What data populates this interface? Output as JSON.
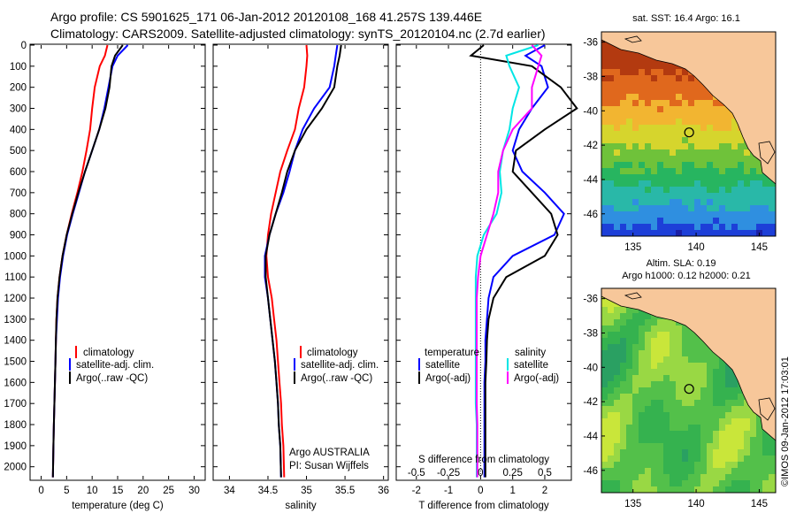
{
  "header": {
    "line1": "Argo profile: CS 5901625_171 06-Jan-2012 20120108_168 41.257S 139.446E",
    "line2": "Climatology: CARS2009. Satellite-adjusted climatology: synTS_20120104.nc (2.7d earlier)"
  },
  "colors": {
    "climatology": "#ff0000",
    "satellite": "#0000ff",
    "argo": "#000000",
    "s_satellite": "#00e5e5",
    "s_argo": "#ff00ff"
  },
  "credit": {
    "line1": "Argo AUSTRALIA",
    "line2": "PI: Susan Wijffels"
  },
  "imos_stamp": "©IMOS 09-Jan-2012 17:03:01",
  "chart_data": [
    {
      "type": "line",
      "id": "temperature",
      "xlabel": "temperature (deg C)",
      "ylabel": "",
      "xlim": [
        -2,
        32
      ],
      "ylim": [
        2060,
        0
      ],
      "xticks": [
        0,
        5,
        10,
        15,
        20,
        25,
        30
      ],
      "yticks": [
        0,
        100,
        200,
        300,
        400,
        500,
        600,
        700,
        800,
        900,
        1000,
        1100,
        1200,
        1300,
        1400,
        1500,
        1600,
        1700,
        1800,
        1900,
        2000
      ],
      "legend": [
        "climatology",
        "satellite-adj. clim.",
        "Argo(..raw -QC)"
      ],
      "series": [
        {
          "name": "climatology",
          "color": "#ff0000",
          "x": [
            13,
            12.5,
            11.5,
            10.5,
            10,
            9.6,
            8.9,
            8.1,
            7.1,
            6,
            5,
            4.2,
            3.6,
            3.2,
            3,
            2.9,
            2.8,
            2.7,
            2.6,
            2.5,
            2.4,
            2.3
          ],
          "y": [
            0,
            50,
            100,
            200,
            300,
            400,
            500,
            600,
            700,
            800,
            900,
            1000,
            1100,
            1200,
            1300,
            1400,
            1500,
            1600,
            1700,
            1800,
            1900,
            2050
          ]
        },
        {
          "name": "satellite-adj. clim.",
          "color": "#0000ff",
          "x": [
            17,
            15,
            14,
            13.2,
            12.4,
            11.4,
            10,
            8.6,
            7.4,
            6.2,
            5.1,
            4.3,
            3.7,
            3.3,
            3.1,
            2.9,
            2.8,
            2.7,
            2.6,
            2.5,
            2.4,
            2.3
          ],
          "y": [
            0,
            50,
            100,
            200,
            300,
            400,
            500,
            600,
            700,
            800,
            900,
            1000,
            1100,
            1200,
            1300,
            1400,
            1500,
            1600,
            1700,
            1800,
            1900,
            2050
          ]
        },
        {
          "name": "Argo(..raw -QC)",
          "color": "#000000",
          "x": [
            16,
            14.5,
            13.8,
            13.4,
            12.6,
            11.4,
            10,
            8.6,
            7.3,
            6.1,
            5,
            4.2,
            3.6,
            3.2,
            3,
            2.9,
            2.8,
            2.7,
            2.6,
            2.5,
            2.4,
            2.3
          ],
          "y": [
            0,
            50,
            100,
            200,
            300,
            400,
            500,
            600,
            700,
            800,
            900,
            1000,
            1100,
            1200,
            1300,
            1400,
            1500,
            1600,
            1700,
            1800,
            1900,
            2050
          ]
        }
      ]
    },
    {
      "type": "line",
      "id": "salinity",
      "xlabel": "salinity",
      "xlim": [
        33.8,
        36.05
      ],
      "ylim": [
        2060,
        0
      ],
      "xticks": [
        34,
        34.5,
        35,
        35.5,
        36
      ],
      "legend": [
        "climatology",
        "satellite-adj. clim.",
        "Argo(..raw -QC)"
      ],
      "series": [
        {
          "name": "climatology",
          "color": "#ff0000",
          "x": [
            35,
            35.01,
            35.0,
            34.97,
            34.9,
            34.85,
            34.75,
            34.66,
            34.6,
            34.54,
            34.5,
            34.48,
            34.5,
            34.55,
            34.58,
            34.61,
            34.63,
            34.65,
            34.67,
            34.68,
            34.7,
            34.71
          ],
          "y": [
            0,
            50,
            100,
            200,
            300,
            400,
            500,
            600,
            700,
            800,
            900,
            1000,
            1100,
            1200,
            1300,
            1400,
            1500,
            1600,
            1700,
            1800,
            1900,
            2050
          ]
        },
        {
          "name": "satellite-adj. clim.",
          "color": "#0000ff",
          "x": [
            35.4,
            35.38,
            35.36,
            35.3,
            35.1,
            34.95,
            34.85,
            34.78,
            34.7,
            34.6,
            34.52,
            34.46,
            34.46,
            34.5,
            34.53,
            34.56,
            34.59,
            34.61,
            34.63,
            34.64,
            34.66,
            34.67
          ],
          "y": [
            0,
            50,
            100,
            200,
            300,
            400,
            500,
            600,
            700,
            800,
            900,
            1000,
            1100,
            1200,
            1300,
            1400,
            1500,
            1600,
            1700,
            1800,
            1900,
            2050
          ]
        },
        {
          "name": "Argo(..raw -QC)",
          "color": "#000000",
          "x": [
            35.45,
            35.43,
            35.4,
            35.36,
            35.2,
            35.0,
            34.85,
            34.75,
            34.68,
            34.6,
            34.52,
            34.47,
            34.47,
            34.5,
            34.53,
            34.56,
            34.59,
            34.61,
            34.63,
            34.64,
            34.66,
            34.67
          ],
          "y": [
            0,
            50,
            100,
            200,
            300,
            400,
            500,
            600,
            700,
            800,
            900,
            1000,
            1100,
            1200,
            1300,
            1400,
            1500,
            1600,
            1700,
            1800,
            1900,
            2050
          ]
        }
      ]
    },
    {
      "type": "line",
      "id": "difference",
      "xlabel": "T difference from climatology",
      "xlabel_top": "S difference from climatology",
      "xlim": [
        -2.6,
        2.8
      ],
      "ylim": [
        2060,
        0
      ],
      "xticks": [
        -2,
        -1,
        0,
        1,
        2
      ],
      "top_xticks": [
        {
          "label": "-0.5",
          "x": -2
        },
        {
          "label": "-0.25",
          "x": -1
        },
        {
          "label": "0",
          "x": 0
        },
        {
          "label": "0.25",
          "x": 1
        },
        {
          "label": "0.5",
          "x": 2
        }
      ],
      "legend_titles": [
        "temperature",
        "salinity"
      ],
      "legend_temperature": [
        "satellite",
        "Argo(-adj)"
      ],
      "legend_salinity": [
        "satellite",
        "Argo(-adj)"
      ],
      "series": [
        {
          "name": "T satellite",
          "color": "#0000ff",
          "x": [
            2,
            1.4,
            1.9,
            2.1,
            1.6,
            1.2,
            1.0,
            1.3,
            2.0,
            2.6,
            2.3,
            1.0,
            0.4,
            0.25,
            0.2,
            0.15,
            0.15,
            0.12,
            0.12,
            0.12,
            0.12,
            0.12
          ],
          "y": [
            0,
            50,
            100,
            200,
            300,
            400,
            500,
            600,
            700,
            800,
            900,
            1000,
            1100,
            1200,
            1300,
            1400,
            1500,
            1600,
            1700,
            1800,
            1900,
            2050
          ]
        },
        {
          "name": "T Argo(-adj)",
          "color": "#000000",
          "x": [
            0.1,
            -0.3,
            1.6,
            2.5,
            3.0,
            2.0,
            1.1,
            1.0,
            1.6,
            2.2,
            2.4,
            2.0,
            0.8,
            0.4,
            0.25,
            0.2,
            0.18,
            0.15,
            0.15,
            0.15,
            0.15,
            0.15
          ],
          "y": [
            0,
            50,
            100,
            200,
            300,
            400,
            500,
            600,
            700,
            800,
            900,
            1000,
            1100,
            1200,
            1300,
            1400,
            1500,
            1600,
            1700,
            1800,
            1900,
            2050
          ]
        },
        {
          "name": "S satellite",
          "color": "#00e5e5",
          "x": [
            1.8,
            0.8,
            0.9,
            1.2,
            1.0,
            0.9,
            0.7,
            0.6,
            0.65,
            0.5,
            0.1,
            -0.1,
            -0.15,
            -0.15,
            -0.15,
            -0.15,
            -0.15,
            -0.15,
            -0.15,
            -0.12,
            -0.12,
            -0.12
          ],
          "y": [
            0,
            50,
            100,
            200,
            300,
            400,
            500,
            600,
            700,
            800,
            900,
            1000,
            1100,
            1200,
            1300,
            1400,
            1500,
            1600,
            1700,
            1800,
            1900,
            2050
          ]
        },
        {
          "name": "S Argo(-adj)",
          "color": "#ff00ff",
          "x": [
            1.6,
            1.9,
            1.8,
            1.6,
            1.6,
            1.0,
            0.7,
            0.55,
            0.55,
            0.4,
            0.2,
            0.0,
            -0.08,
            -0.12,
            -0.12,
            -0.12,
            -0.12,
            -0.12,
            -0.12,
            -0.1,
            -0.1,
            -0.1
          ],
          "y": [
            0,
            50,
            100,
            200,
            300,
            400,
            500,
            600,
            700,
            800,
            900,
            1000,
            1100,
            1200,
            1300,
            1400,
            1500,
            1600,
            1700,
            1800,
            1900,
            2050
          ]
        }
      ]
    },
    {
      "type": "heatmap",
      "id": "sst-map",
      "title": "sat. SST: 16.4  Argo: 16.1",
      "xlim": [
        132.5,
        146.3
      ],
      "ylim": [
        -47.3,
        -35.4
      ],
      "xticks": [
        135,
        140,
        145
      ],
      "yticks": [
        -36,
        -38,
        -40,
        -42,
        -44,
        -46
      ],
      "marker": {
        "lon": 139.446,
        "lat": -41.257
      }
    },
    {
      "type": "heatmap",
      "id": "sla-map",
      "title": "Altim. SLA: 0.19",
      "subtitle": "Argo h1000: 0.12 h2000: 0.21",
      "xlim": [
        132.5,
        146.3
      ],
      "ylim": [
        -47.3,
        -35.4
      ],
      "xticks": [
        135,
        140,
        145
      ],
      "yticks": [
        -36,
        -38,
        -40,
        -42,
        -44,
        -46
      ],
      "marker": {
        "lon": 139.446,
        "lat": -41.257
      }
    }
  ]
}
